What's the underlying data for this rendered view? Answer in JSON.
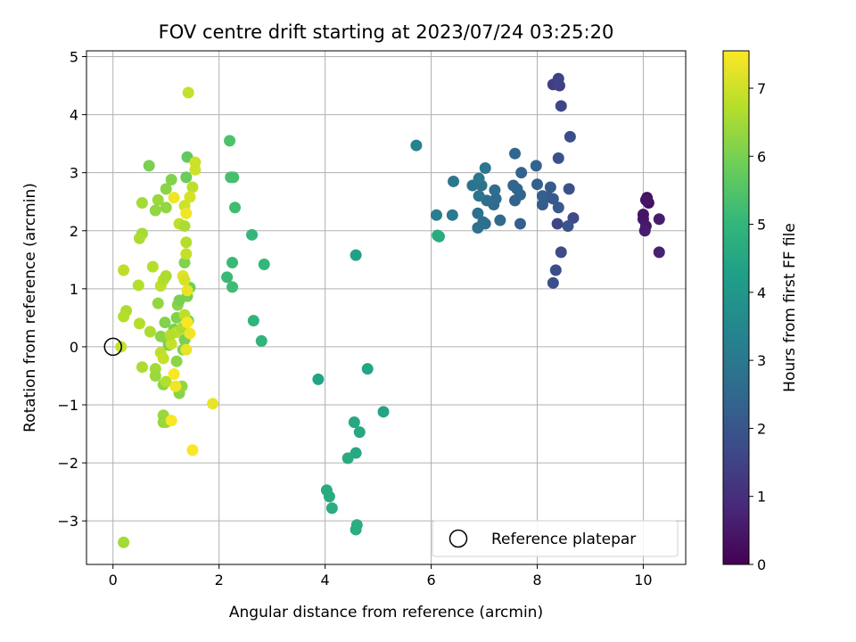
{
  "chart_data": {
    "type": "scatter",
    "title": "FOV centre drift starting at 2023/07/24 03:25:20",
    "xlabel": "Angular distance from reference (arcmin)",
    "ylabel": "Rotation from reference (arcmin)",
    "xlim": [
      -0.5,
      10.8
    ],
    "ylim": [
      -3.75,
      5.1
    ],
    "xticks": [
      0,
      2,
      4,
      6,
      8,
      10
    ],
    "yticks": [
      -3,
      -2,
      -1,
      0,
      1,
      2,
      3,
      4,
      5
    ],
    "xtick_labels": [
      "0",
      "2",
      "4",
      "6",
      "8",
      "10"
    ],
    "ytick_labels": [
      "−3",
      "−2",
      "−1",
      "0",
      "1",
      "2",
      "3",
      "4",
      "5"
    ],
    "grid": true,
    "colormap": "viridis",
    "colorbar": {
      "label": "Hours from first FF file",
      "range": [
        0,
        7.55
      ],
      "ticks": [
        0,
        1,
        2,
        3,
        4,
        5,
        6,
        7
      ],
      "tick_labels": [
        "0",
        "1",
        "2",
        "3",
        "4",
        "5",
        "6",
        "7"
      ]
    },
    "legend": {
      "placement": "lower right",
      "entries": [
        "Reference platepar"
      ]
    },
    "reference_point": {
      "x": 0,
      "y": 0
    },
    "series": [
      {
        "points": [
          {
            "x": 10.07,
            "y": 2.57,
            "c": 0.3
          },
          {
            "x": 10.1,
            "y": 2.48,
            "c": 0.3
          },
          {
            "x": 10.05,
            "y": 2.53,
            "c": 0.4
          },
          {
            "x": 10.0,
            "y": 2.2,
            "c": 0.5
          },
          {
            "x": 10.05,
            "y": 2.08,
            "c": 0.5
          },
          {
            "x": 10.0,
            "y": 2.28,
            "c": 0.4
          },
          {
            "x": 10.03,
            "y": 2.0,
            "c": 0.6
          },
          {
            "x": 10.3,
            "y": 2.2,
            "c": 0.6
          },
          {
            "x": 10.3,
            "y": 1.63,
            "c": 0.7
          },
          {
            "x": 8.3,
            "y": 4.52,
            "c": 1.4
          },
          {
            "x": 8.4,
            "y": 4.62,
            "c": 1.5
          },
          {
            "x": 8.42,
            "y": 4.5,
            "c": 1.5
          },
          {
            "x": 8.45,
            "y": 4.15,
            "c": 1.6
          },
          {
            "x": 8.62,
            "y": 3.62,
            "c": 1.8
          },
          {
            "x": 8.4,
            "y": 3.25,
            "c": 1.9
          },
          {
            "x": 8.6,
            "y": 2.72,
            "c": 1.9
          },
          {
            "x": 8.68,
            "y": 2.22,
            "c": 1.7
          },
          {
            "x": 8.58,
            "y": 2.08,
            "c": 2.0
          },
          {
            "x": 8.38,
            "y": 2.12,
            "c": 1.6
          },
          {
            "x": 8.45,
            "y": 1.63,
            "c": 1.7
          },
          {
            "x": 8.35,
            "y": 1.32,
            "c": 1.8
          },
          {
            "x": 8.3,
            "y": 1.1,
            "c": 1.8
          },
          {
            "x": 8.4,
            "y": 2.4,
            "c": 2.1
          },
          {
            "x": 8.3,
            "y": 2.55,
            "c": 2.1
          },
          {
            "x": 8.25,
            "y": 2.75,
            "c": 2.2
          },
          {
            "x": 8.2,
            "y": 2.58,
            "c": 2.1
          },
          {
            "x": 8.1,
            "y": 2.45,
            "c": 2.2
          },
          {
            "x": 8.1,
            "y": 2.6,
            "c": 2.3
          },
          {
            "x": 8.0,
            "y": 2.8,
            "c": 2.3
          },
          {
            "x": 7.98,
            "y": 3.12,
            "c": 2.4
          },
          {
            "x": 7.7,
            "y": 3.0,
            "c": 2.4
          },
          {
            "x": 7.58,
            "y": 3.33,
            "c": 2.5
          },
          {
            "x": 7.55,
            "y": 2.78,
            "c": 2.4
          },
          {
            "x": 7.62,
            "y": 2.72,
            "c": 2.5
          },
          {
            "x": 7.68,
            "y": 2.62,
            "c": 2.5
          },
          {
            "x": 7.58,
            "y": 2.52,
            "c": 2.4
          },
          {
            "x": 7.68,
            "y": 2.12,
            "c": 2.3
          },
          {
            "x": 7.3,
            "y": 2.18,
            "c": 2.6
          },
          {
            "x": 7.22,
            "y": 2.55,
            "c": 2.6
          },
          {
            "x": 7.18,
            "y": 2.45,
            "c": 2.6
          },
          {
            "x": 7.2,
            "y": 2.7,
            "c": 2.7
          },
          {
            "x": 7.05,
            "y": 2.52,
            "c": 2.7
          },
          {
            "x": 7.02,
            "y": 2.12,
            "c": 2.8
          },
          {
            "x": 6.88,
            "y": 2.05,
            "c": 2.8
          },
          {
            "x": 6.98,
            "y": 2.15,
            "c": 2.7
          },
          {
            "x": 6.88,
            "y": 2.3,
            "c": 2.8
          },
          {
            "x": 6.9,
            "y": 2.6,
            "c": 2.9
          },
          {
            "x": 6.95,
            "y": 2.78,
            "c": 2.8
          },
          {
            "x": 6.78,
            "y": 2.78,
            "c": 2.9
          },
          {
            "x": 6.9,
            "y": 2.9,
            "c": 3.0
          },
          {
            "x": 7.02,
            "y": 3.08,
            "c": 3.0
          },
          {
            "x": 6.42,
            "y": 2.85,
            "c": 3.0
          },
          {
            "x": 6.4,
            "y": 2.27,
            "c": 3.1
          },
          {
            "x": 6.1,
            "y": 2.27,
            "c": 3.2
          },
          {
            "x": 5.72,
            "y": 3.47,
            "c": 3.4
          },
          {
            "x": 6.15,
            "y": 1.9,
            "c": 4.6
          },
          {
            "x": 6.12,
            "y": 1.92,
            "c": 4.6
          },
          {
            "x": 4.58,
            "y": 1.58,
            "c": 4.3
          },
          {
            "x": 4.8,
            "y": -0.38,
            "c": 4.4
          },
          {
            "x": 5.1,
            "y": -1.12,
            "c": 4.4
          },
          {
            "x": 3.87,
            "y": -0.56,
            "c": 4.4
          },
          {
            "x": 4.55,
            "y": -1.3,
            "c": 4.5
          },
          {
            "x": 4.65,
            "y": -1.47,
            "c": 4.5
          },
          {
            "x": 4.58,
            "y": -1.83,
            "c": 4.5
          },
          {
            "x": 4.43,
            "y": -1.92,
            "c": 4.6
          },
          {
            "x": 4.03,
            "y": -2.47,
            "c": 4.6
          },
          {
            "x": 4.08,
            "y": -2.58,
            "c": 4.6
          },
          {
            "x": 4.13,
            "y": -2.78,
            "c": 4.7
          },
          {
            "x": 4.6,
            "y": -3.07,
            "c": 4.7
          },
          {
            "x": 4.58,
            "y": -3.15,
            "c": 4.7
          },
          {
            "x": 2.8,
            "y": 0.1,
            "c": 4.9
          },
          {
            "x": 2.85,
            "y": 1.42,
            "c": 5.0
          },
          {
            "x": 2.65,
            "y": 0.45,
            "c": 4.9
          },
          {
            "x": 2.62,
            "y": 1.93,
            "c": 5.0
          },
          {
            "x": 2.3,
            "y": 2.4,
            "c": 5.2
          },
          {
            "x": 2.25,
            "y": 1.45,
            "c": 5.1
          },
          {
            "x": 2.25,
            "y": 1.03,
            "c": 5.2
          },
          {
            "x": 2.15,
            "y": 1.2,
            "c": 5.1
          },
          {
            "x": 2.22,
            "y": 2.92,
            "c": 5.3
          },
          {
            "x": 2.27,
            "y": 2.92,
            "c": 5.3
          },
          {
            "x": 2.2,
            "y": 3.55,
            "c": 5.4
          },
          {
            "x": 1.4,
            "y": 3.27,
            "c": 5.7
          },
          {
            "x": 1.38,
            "y": 2.92,
            "c": 5.8
          },
          {
            "x": 1.45,
            "y": 1.02,
            "c": 5.9
          },
          {
            "x": 1.4,
            "y": 0.87,
            "c": 6.0
          },
          {
            "x": 1.42,
            "y": 0.45,
            "c": 6.0
          },
          {
            "x": 1.35,
            "y": 1.45,
            "c": 6.1
          },
          {
            "x": 1.35,
            "y": 0.12,
            "c": 6.0
          },
          {
            "x": 1.32,
            "y": -0.05,
            "c": 6.1
          },
          {
            "x": 1.2,
            "y": -0.25,
            "c": 6.2
          },
          {
            "x": 1.25,
            "y": -0.8,
            "c": 6.2
          },
          {
            "x": 1.3,
            "y": -0.68,
            "c": 6.3
          },
          {
            "x": 0.95,
            "y": -0.65,
            "c": 6.2
          },
          {
            "x": 0.95,
            "y": -1.18,
            "c": 6.4
          },
          {
            "x": 0.95,
            "y": -1.3,
            "c": 6.3
          },
          {
            "x": 1.0,
            "y": -1.3,
            "c": 6.4
          },
          {
            "x": 1.05,
            "y": 0.03,
            "c": 6.0
          },
          {
            "x": 1.0,
            "y": 0.15,
            "c": 6.1
          },
          {
            "x": 0.9,
            "y": 0.18,
            "c": 6.2
          },
          {
            "x": 1.15,
            "y": 0.3,
            "c": 6.0
          },
          {
            "x": 1.2,
            "y": 0.5,
            "c": 6.1
          },
          {
            "x": 1.22,
            "y": 0.72,
            "c": 6.2
          },
          {
            "x": 1.25,
            "y": 0.8,
            "c": 6.0
          },
          {
            "x": 0.98,
            "y": 0.42,
            "c": 6.1
          },
          {
            "x": 0.85,
            "y": 0.75,
            "c": 6.3
          },
          {
            "x": 0.7,
            "y": 0.26,
            "c": 6.6
          },
          {
            "x": 0.68,
            "y": 3.12,
            "c": 6.0
          },
          {
            "x": 1.1,
            "y": 2.88,
            "c": 6.1
          },
          {
            "x": 1.0,
            "y": 2.72,
            "c": 6.2
          },
          {
            "x": 1.0,
            "y": 2.4,
            "c": 6.3
          },
          {
            "x": 0.8,
            "y": 2.35,
            "c": 6.3
          },
          {
            "x": 0.85,
            "y": 2.53,
            "c": 6.4
          },
          {
            "x": 0.55,
            "y": 1.95,
            "c": 6.5
          },
          {
            "x": 0.5,
            "y": 1.87,
            "c": 6.6
          },
          {
            "x": 0.55,
            "y": 2.48,
            "c": 6.5
          },
          {
            "x": 0.8,
            "y": -0.38,
            "c": 6.5
          },
          {
            "x": 0.55,
            "y": -0.35,
            "c": 6.6
          },
          {
            "x": 0.8,
            "y": -0.5,
            "c": 6.4
          },
          {
            "x": 1.0,
            "y": -0.6,
            "c": 6.7
          },
          {
            "x": 0.9,
            "y": -0.1,
            "c": 6.8
          },
          {
            "x": 0.95,
            "y": -0.2,
            "c": 6.9
          },
          {
            "x": 1.1,
            "y": 0.05,
            "c": 6.9
          },
          {
            "x": 1.2,
            "y": 0.25,
            "c": 6.8
          },
          {
            "x": 1.08,
            "y": 0.2,
            "c": 6.7
          },
          {
            "x": 1.3,
            "y": 0.32,
            "c": 6.6
          },
          {
            "x": 1.35,
            "y": 0.55,
            "c": 6.8
          },
          {
            "x": 0.75,
            "y": 1.38,
            "c": 6.7
          },
          {
            "x": 0.9,
            "y": 1.05,
            "c": 6.8
          },
          {
            "x": 0.95,
            "y": 1.15,
            "c": 6.7
          },
          {
            "x": 1.0,
            "y": 1.22,
            "c": 6.6
          },
          {
            "x": 0.48,
            "y": 1.06,
            "c": 6.7
          },
          {
            "x": 0.5,
            "y": 0.4,
            "c": 6.7
          },
          {
            "x": 0.25,
            "y": 0.62,
            "c": 6.6
          },
          {
            "x": 0.2,
            "y": 0.52,
            "c": 6.7
          },
          {
            "x": 0.2,
            "y": 1.32,
            "c": 6.8
          },
          {
            "x": 0.15,
            "y": 0.0,
            "c": 6.9
          },
          {
            "x": 0.2,
            "y": -3.37,
            "c": 6.5
          },
          {
            "x": 1.42,
            "y": 4.38,
            "c": 6.9
          },
          {
            "x": 1.25,
            "y": 2.12,
            "c": 6.8
          },
          {
            "x": 1.35,
            "y": 2.08,
            "c": 6.6
          },
          {
            "x": 1.38,
            "y": 1.8,
            "c": 6.7
          },
          {
            "x": 1.38,
            "y": 1.6,
            "c": 6.9
          },
          {
            "x": 1.5,
            "y": 2.75,
            "c": 6.8
          },
          {
            "x": 1.55,
            "y": 3.18,
            "c": 7.0
          },
          {
            "x": 1.55,
            "y": 3.05,
            "c": 7.0
          },
          {
            "x": 1.45,
            "y": 2.58,
            "c": 7.1
          },
          {
            "x": 1.35,
            "y": 2.43,
            "c": 7.0
          },
          {
            "x": 1.32,
            "y": 1.22,
            "c": 7.2
          },
          {
            "x": 1.35,
            "y": 1.15,
            "c": 7.1
          },
          {
            "x": 1.4,
            "y": 0.97,
            "c": 7.3
          },
          {
            "x": 1.15,
            "y": 2.57,
            "c": 7.4
          },
          {
            "x": 1.38,
            "y": 2.3,
            "c": 7.4
          },
          {
            "x": 1.4,
            "y": 0.42,
            "c": 7.5
          },
          {
            "x": 1.45,
            "y": 0.23,
            "c": 7.4
          },
          {
            "x": 1.38,
            "y": -0.05,
            "c": 7.3
          },
          {
            "x": 1.15,
            "y": -0.47,
            "c": 7.5
          },
          {
            "x": 1.18,
            "y": -0.68,
            "c": 7.4
          },
          {
            "x": 1.88,
            "y": -0.98,
            "c": 7.3
          },
          {
            "x": 1.1,
            "y": -1.27,
            "c": 7.5
          },
          {
            "x": 1.5,
            "y": -1.78,
            "c": 7.5
          }
        ]
      }
    ]
  }
}
